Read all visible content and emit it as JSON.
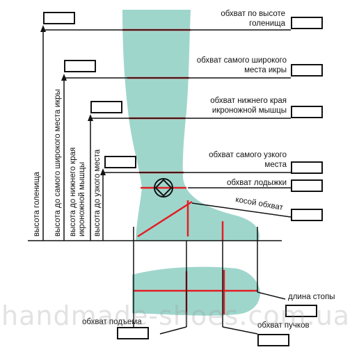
{
  "colors": {
    "leg_fill": "#9fd6cc",
    "measure_line": "#e31e24",
    "guide_line": "#111111"
  },
  "labels": {
    "calf_top_girth": "обхват по высоте\nголенища",
    "widest_calf_girth": "обхват самого широкого\nместа икры",
    "lower_calf_muscle_girth": "обхват нижнего края\nикроножной мышцы",
    "narrowest_girth": "обхват самого узкого\nместа",
    "ankle_girth": "обхват лодыжки",
    "oblique_girth": "косой обхват",
    "foot_length": "длина стопы",
    "instep_girth": "обхват подъема",
    "ball_girth": "обхват пучков"
  },
  "vertical_labels": {
    "shaft_height": "высота голенища",
    "widest_calf_height": "высота до самого широкого места икры",
    "lower_calf_height": "высота до нижнего края\nикроножной мышцы",
    "narrowest_height": "высота до узкого места"
  },
  "watermark": "handmade-shoes.com.ua"
}
